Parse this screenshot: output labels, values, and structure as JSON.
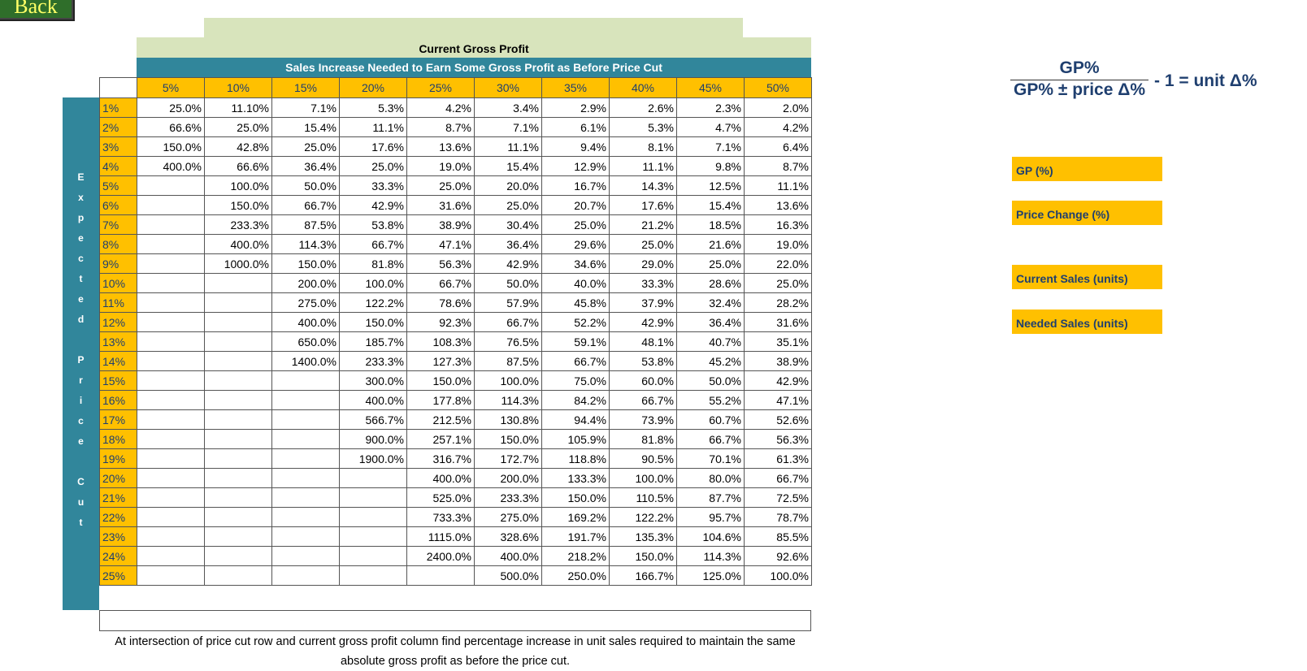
{
  "back_button": "Back",
  "table": {
    "title": "Current Gross Profit",
    "subtitle": "Sales Increase Needed to Earn Some Gross Profit as Before Price Cut",
    "side_label": "Expected Price Cut",
    "columns": [
      "5%",
      "10%",
      "15%",
      "20%",
      "25%",
      "30%",
      "35%",
      "40%",
      "45%",
      "50%"
    ],
    "row_labels": [
      "1%",
      "2%",
      "3%",
      "4%",
      "5%",
      "6%",
      "7%",
      "8%",
      "9%",
      "10%",
      "11%",
      "12%",
      "13%",
      "14%",
      "15%",
      "16%",
      "17%",
      "18%",
      "19%",
      "20%",
      "21%",
      "22%",
      "23%",
      "24%",
      "25%"
    ],
    "rows": [
      [
        "25.0%",
        "11.10%",
        "7.1%",
        "5.3%",
        "4.2%",
        "3.4%",
        "2.9%",
        "2.6%",
        "2.3%",
        "2.0%"
      ],
      [
        "66.6%",
        "25.0%",
        "15.4%",
        "11.1%",
        "8.7%",
        "7.1%",
        "6.1%",
        "5.3%",
        "4.7%",
        "4.2%"
      ],
      [
        "150.0%",
        "42.8%",
        "25.0%",
        "17.6%",
        "13.6%",
        "11.1%",
        "9.4%",
        "8.1%",
        "7.1%",
        "6.4%"
      ],
      [
        "400.0%",
        "66.6%",
        "36.4%",
        "25.0%",
        "19.0%",
        "15.4%",
        "12.9%",
        "11.1%",
        "9.8%",
        "8.7%"
      ],
      [
        null,
        "100.0%",
        "50.0%",
        "33.3%",
        "25.0%",
        "20.0%",
        "16.7%",
        "14.3%",
        "12.5%",
        "11.1%"
      ],
      [
        null,
        "150.0%",
        "66.7%",
        "42.9%",
        "31.6%",
        "25.0%",
        "20.7%",
        "17.6%",
        "15.4%",
        "13.6%"
      ],
      [
        null,
        "233.3%",
        "87.5%",
        "53.8%",
        "38.9%",
        "30.4%",
        "25.0%",
        "21.2%",
        "18.5%",
        "16.3%"
      ],
      [
        null,
        "400.0%",
        "114.3%",
        "66.7%",
        "47.1%",
        "36.4%",
        "29.6%",
        "25.0%",
        "21.6%",
        "19.0%"
      ],
      [
        null,
        "1000.0%",
        "150.0%",
        "81.8%",
        "56.3%",
        "42.9%",
        "34.6%",
        "29.0%",
        "25.0%",
        "22.0%"
      ],
      [
        null,
        null,
        "200.0%",
        "100.0%",
        "66.7%",
        "50.0%",
        "40.0%",
        "33.3%",
        "28.6%",
        "25.0%"
      ],
      [
        null,
        null,
        "275.0%",
        "122.2%",
        "78.6%",
        "57.9%",
        "45.8%",
        "37.9%",
        "32.4%",
        "28.2%"
      ],
      [
        null,
        null,
        "400.0%",
        "150.0%",
        "92.3%",
        "66.7%",
        "52.2%",
        "42.9%",
        "36.4%",
        "31.6%"
      ],
      [
        null,
        null,
        "650.0%",
        "185.7%",
        "108.3%",
        "76.5%",
        "59.1%",
        "48.1%",
        "40.7%",
        "35.1%"
      ],
      [
        null,
        null,
        "1400.0%",
        "233.3%",
        "127.3%",
        "87.5%",
        "66.7%",
        "53.8%",
        "45.2%",
        "38.9%"
      ],
      [
        null,
        null,
        null,
        "300.0%",
        "150.0%",
        "100.0%",
        "75.0%",
        "60.0%",
        "50.0%",
        "42.9%"
      ],
      [
        null,
        null,
        null,
        "400.0%",
        "177.8%",
        "114.3%",
        "84.2%",
        "66.7%",
        "55.2%",
        "47.1%"
      ],
      [
        null,
        null,
        null,
        "566.7%",
        "212.5%",
        "130.8%",
        "94.4%",
        "73.9%",
        "60.7%",
        "52.6%"
      ],
      [
        null,
        null,
        null,
        "900.0%",
        "257.1%",
        "150.0%",
        "105.9%",
        "81.8%",
        "66.7%",
        "56.3%"
      ],
      [
        null,
        null,
        null,
        "1900.0%",
        "316.7%",
        "172.7%",
        "118.8%",
        "90.5%",
        "70.1%",
        "61.3%"
      ],
      [
        null,
        null,
        null,
        null,
        "400.0%",
        "200.0%",
        "133.3%",
        "100.0%",
        "80.0%",
        "66.7%"
      ],
      [
        null,
        null,
        null,
        null,
        "525.0%",
        "233.3%",
        "150.0%",
        "110.5%",
        "87.7%",
        "72.5%"
      ],
      [
        null,
        null,
        null,
        null,
        "733.3%",
        "275.0%",
        "169.2%",
        "122.2%",
        "95.7%",
        "78.7%"
      ],
      [
        null,
        null,
        null,
        null,
        "1115.0%",
        "328.6%",
        "191.7%",
        "135.3%",
        "104.6%",
        "85.5%"
      ],
      [
        null,
        null,
        null,
        null,
        "2400.0%",
        "400.0%",
        "218.2%",
        "150.0%",
        "114.3%",
        "92.6%"
      ],
      [
        null,
        null,
        null,
        null,
        null,
        "500.0%",
        "250.0%",
        "166.7%",
        "125.0%",
        "100.0%"
      ]
    ],
    "note": "At intersection of price cut row and current gross profit column find percentage increase in unit sales required to maintain the same absolute gross profit as before the price cut."
  },
  "formula": {
    "numerator": "GP%",
    "denominator": "GP% ± price Δ%",
    "result": "- 1 = unit Δ%"
  },
  "inputs": [
    "GP (%)",
    "Price Change (%)",
    "Current Sales (units)",
    "Needed Sales (units)"
  ]
}
